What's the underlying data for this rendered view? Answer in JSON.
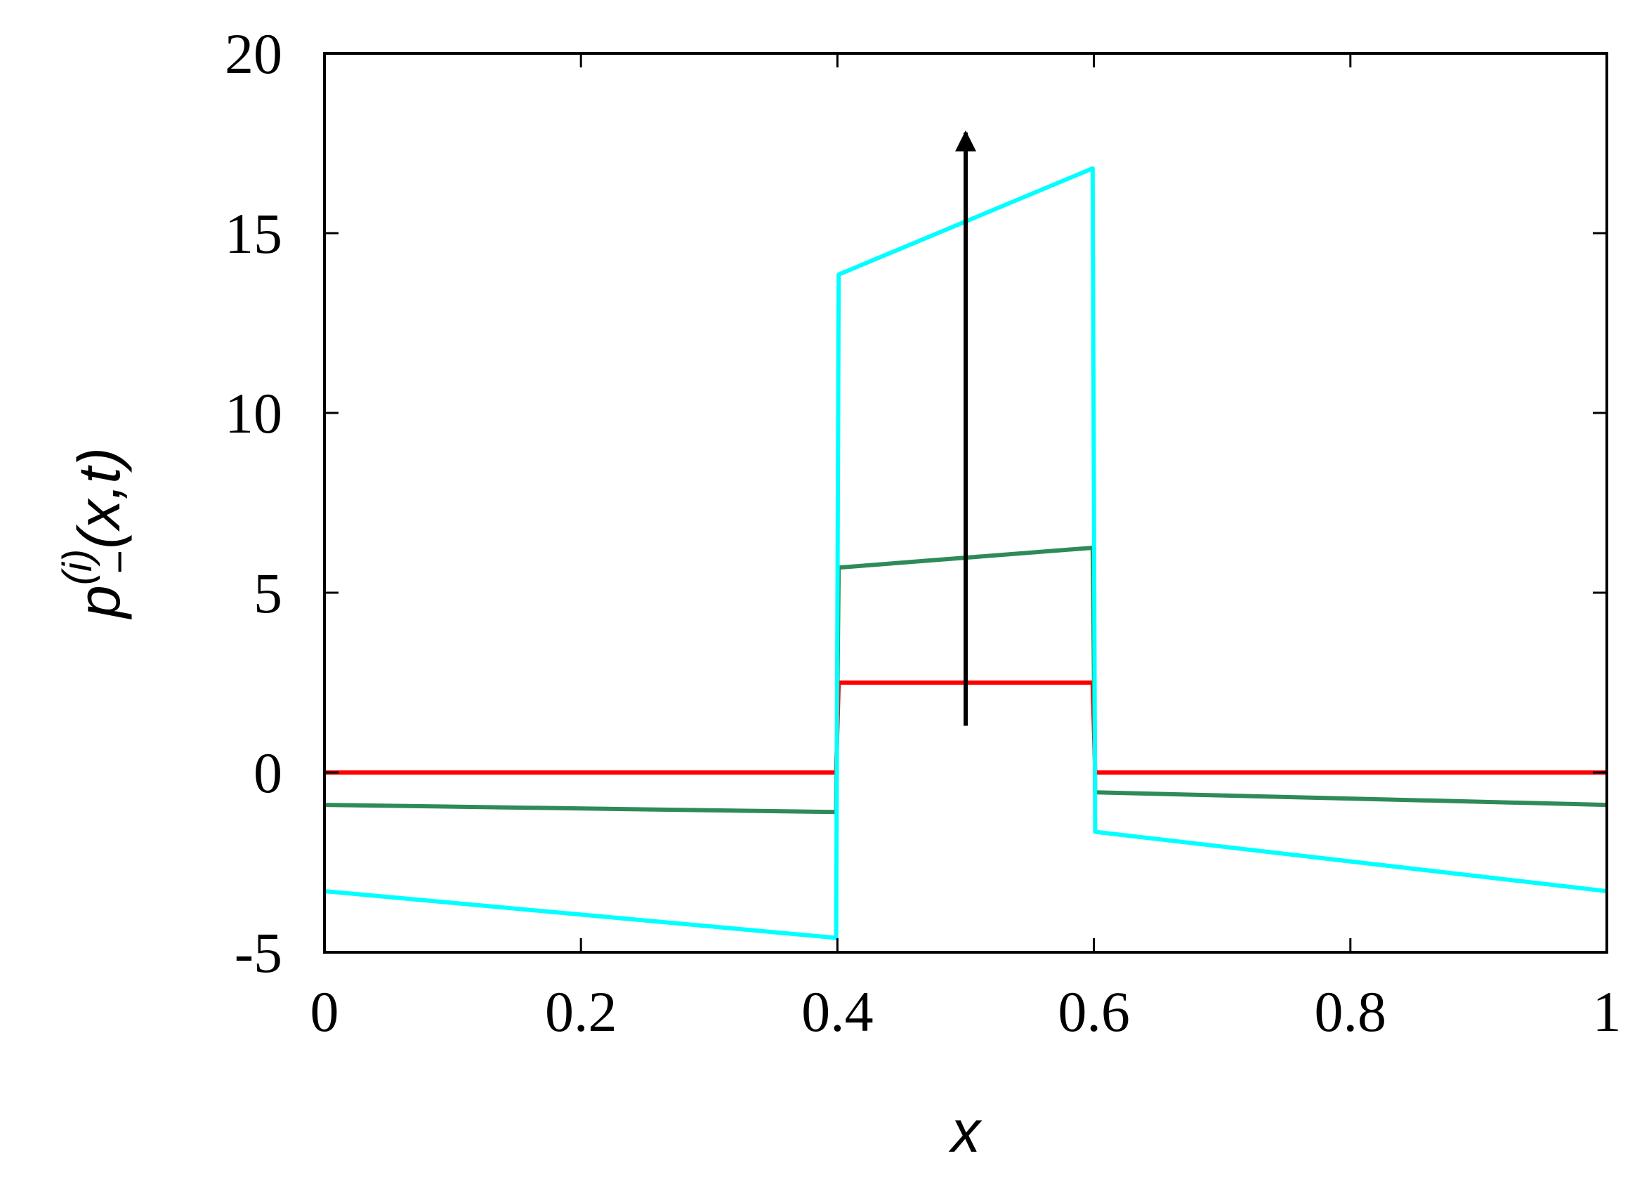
{
  "chart_data": {
    "type": "line",
    "xlabel": "x",
    "ylabel": {
      "base": "p",
      "subscript": "−",
      "superscript": "(i)",
      "args": "(x,t)"
    },
    "xlim": [
      0,
      1
    ],
    "ylim": [
      -5,
      20
    ],
    "xticks": [
      "0",
      "0.2",
      "0.4",
      "0.6",
      "0.8",
      "1"
    ],
    "yticks": [
      "-5",
      "0",
      "5",
      "10",
      "15",
      "20"
    ],
    "grid": false,
    "legend": "none",
    "series": [
      {
        "color": "#ff0000",
        "x": [
          0,
          0.399,
          0.401,
          0.599,
          0.601,
          1
        ],
        "y": [
          0,
          0,
          2.5,
          2.5,
          0,
          0
        ]
      },
      {
        "color": "#2e8b57",
        "x": [
          0,
          0.399,
          0.401,
          0.599,
          0.601,
          1
        ],
        "y": [
          -0.9,
          -1.1,
          5.7,
          6.25,
          -0.55,
          -0.9
        ]
      },
      {
        "color": "#00ffff",
        "x": [
          0,
          0.399,
          0.401,
          0.599,
          0.601,
          1
        ],
        "y": [
          -3.3,
          -4.6,
          13.85,
          16.8,
          -1.65,
          -3.3
        ]
      }
    ],
    "annotations": [
      {
        "type": "arrow",
        "color": "#000000",
        "x": 0.5,
        "y_from": 1.3,
        "y_to": 17.8
      }
    ]
  }
}
